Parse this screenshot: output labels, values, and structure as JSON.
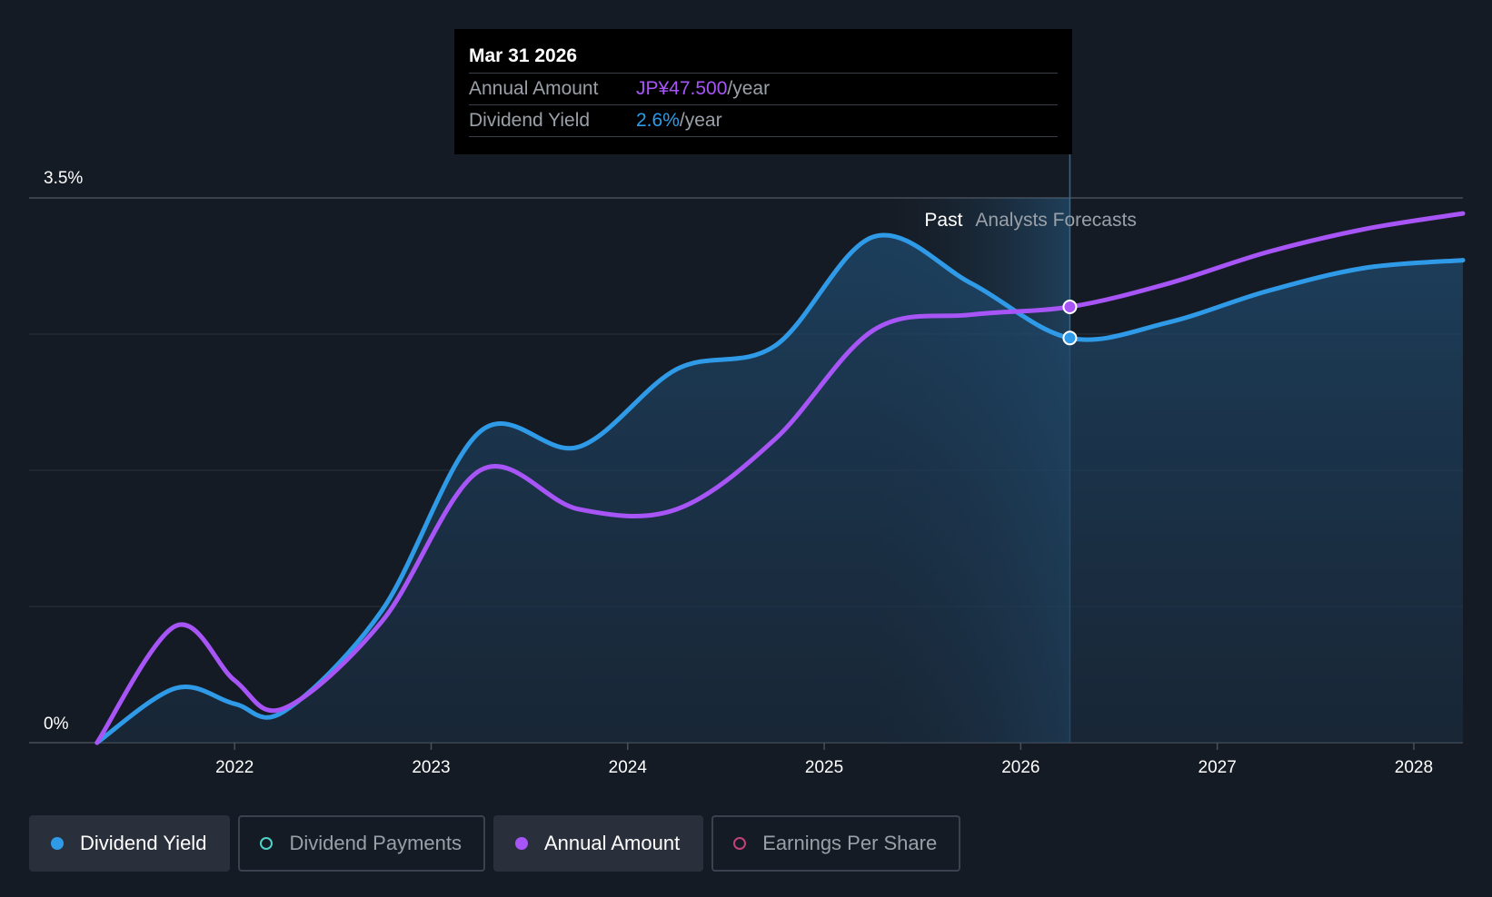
{
  "tooltip": {
    "date": "Mar 31 2026",
    "rows": [
      {
        "label": "Annual Amount",
        "value": "JP¥47.500",
        "unit": "/year"
      },
      {
        "label": "Dividend Yield",
        "value": "2.6%",
        "unit": "/year"
      }
    ]
  },
  "regions": {
    "past_label": "Past",
    "forecast_label": "Analysts Forecasts"
  },
  "legend": [
    {
      "label": "Dividend Yield",
      "active": true,
      "color": "#2f9be8"
    },
    {
      "label": "Dividend Payments",
      "active": false,
      "color": "#4fd1c5"
    },
    {
      "label": "Annual Amount",
      "active": true,
      "color": "#a855f7"
    },
    {
      "label": "Earnings Per Share",
      "active": false,
      "color": "#c2417a"
    }
  ],
  "chart_data": {
    "type": "line",
    "x_ticks": [
      "2022",
      "2023",
      "2024",
      "2025",
      "2026",
      "2027",
      "2028"
    ],
    "y_ticks": [
      "0%",
      "3.5%"
    ],
    "ylim": [
      0,
      3.5
    ],
    "xlim": [
      2021.25,
      2028.25
    ],
    "past_region": [
      2025.25,
      2026.25
    ],
    "highlight_date": "Mar 31 2026",
    "grid": true,
    "series": [
      {
        "name": "Dividend Yield",
        "color": "#2f9be8",
        "fill": true,
        "x": [
          2021.3,
          2021.7,
          2022.0,
          2022.25,
          2022.75,
          2023.25,
          2023.75,
          2024.25,
          2024.75,
          2025.25,
          2025.75,
          2026.25,
          2026.75,
          2027.25,
          2027.75,
          2028.25
        ],
        "y": [
          0.0,
          0.35,
          0.25,
          0.2,
          0.85,
          2.0,
          1.9,
          2.4,
          2.55,
          3.25,
          2.95,
          2.6,
          2.7,
          2.9,
          3.05,
          3.1
        ]
      },
      {
        "name": "Annual Amount",
        "color": "#a855f7",
        "fill": false,
        "x": [
          2021.3,
          2021.7,
          2022.0,
          2022.25,
          2022.75,
          2023.25,
          2023.75,
          2024.25,
          2024.75,
          2025.25,
          2025.75,
          2026.25,
          2026.75,
          2027.25,
          2027.75,
          2028.25
        ],
        "y": [
          0.0,
          0.75,
          0.4,
          0.22,
          0.78,
          1.75,
          1.5,
          1.5,
          1.95,
          2.65,
          2.75,
          2.8,
          2.95,
          3.15,
          3.3,
          3.4
        ]
      }
    ]
  }
}
